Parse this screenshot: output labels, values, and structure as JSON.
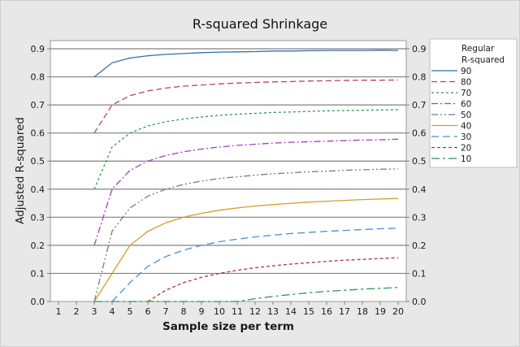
{
  "chart_data": {
    "type": "line",
    "title": "R-squared Shrinkage",
    "xlabel": "Sample size per term",
    "ylabel": "Adjusted R-squared",
    "x": [
      1,
      2,
      3,
      4,
      5,
      6,
      7,
      8,
      9,
      10,
      11,
      12,
      13,
      14,
      15,
      16,
      17,
      18,
      19,
      20
    ],
    "xlim": [
      1,
      20
    ],
    "ylim": [
      0.0,
      0.9
    ],
    "yticks": [
      "0.0",
      "0.1",
      "0.2",
      "0.3",
      "0.4",
      "0.5",
      "0.6",
      "0.7",
      "0.8",
      "0.9"
    ],
    "grid": true,
    "secondary_y_axis": true,
    "legend": {
      "title": "Regular R-squared",
      "position": "right"
    },
    "series": [
      {
        "name": "90",
        "color": "#2e6fb0",
        "dash": "solid",
        "x": [
          3,
          4,
          5,
          6,
          7,
          8,
          9,
          10,
          11,
          12,
          13,
          14,
          15,
          16,
          17,
          18,
          19,
          20
        ],
        "values": [
          0.8,
          0.85,
          0.867,
          0.875,
          0.88,
          0.883,
          0.886,
          0.888,
          0.889,
          0.89,
          0.892,
          0.892,
          0.893,
          0.894,
          0.894,
          0.894,
          0.895,
          0.894
        ]
      },
      {
        "name": "80",
        "color": "#b5474d",
        "dash": "dashed",
        "x": [
          3,
          4,
          5,
          6,
          7,
          8,
          9,
          10,
          11,
          12,
          13,
          14,
          15,
          16,
          17,
          18,
          19,
          20
        ],
        "values": [
          0.6,
          0.7,
          0.733,
          0.75,
          0.76,
          0.767,
          0.771,
          0.775,
          0.778,
          0.78,
          0.782,
          0.783,
          0.785,
          0.786,
          0.787,
          0.788,
          0.788,
          0.789
        ]
      },
      {
        "name": "70",
        "color": "#2e9a4a",
        "dash": "dotted",
        "x": [
          3,
          4,
          5,
          6,
          7,
          8,
          9,
          10,
          11,
          12,
          13,
          14,
          15,
          16,
          17,
          18,
          19,
          20
        ],
        "values": [
          0.4,
          0.55,
          0.6,
          0.625,
          0.64,
          0.65,
          0.657,
          0.663,
          0.667,
          0.67,
          0.673,
          0.675,
          0.677,
          0.679,
          0.68,
          0.681,
          0.682,
          0.683
        ]
      },
      {
        "name": "60",
        "color": "#a63bc4",
        "dash": "dash-dot",
        "x": [
          3,
          4,
          5,
          6,
          7,
          8,
          9,
          10,
          11,
          12,
          13,
          14,
          15,
          16,
          17,
          18,
          19,
          20
        ],
        "values": [
          0.2,
          0.4,
          0.467,
          0.5,
          0.52,
          0.533,
          0.543,
          0.55,
          0.556,
          0.56,
          0.564,
          0.567,
          0.569,
          0.571,
          0.573,
          0.575,
          0.576,
          0.578
        ]
      },
      {
        "name": "50",
        "color": "#7a7a7a",
        "dash": "dash-dot-dot",
        "x": [
          3,
          4,
          5,
          6,
          7,
          8,
          9,
          10,
          11,
          12,
          13,
          14,
          15,
          16,
          17,
          18,
          19,
          20
        ],
        "values": [
          0.0,
          0.25,
          0.333,
          0.375,
          0.4,
          0.417,
          0.429,
          0.438,
          0.444,
          0.45,
          0.455,
          0.458,
          0.462,
          0.464,
          0.467,
          0.469,
          0.471,
          0.472
        ]
      },
      {
        "name": "40",
        "color": "#d99a2b",
        "dash": "solid",
        "x": [
          3,
          4,
          5,
          6,
          7,
          8,
          9,
          10,
          11,
          12,
          13,
          14,
          15,
          16,
          17,
          18,
          19,
          20
        ],
        "values": [
          0.0,
          0.1,
          0.2,
          0.25,
          0.28,
          0.3,
          0.314,
          0.325,
          0.333,
          0.34,
          0.345,
          0.35,
          0.354,
          0.357,
          0.36,
          0.363,
          0.365,
          0.367
        ]
      },
      {
        "name": "30",
        "color": "#4a8fd0",
        "dash": "long-dash",
        "x": [
          4,
          5,
          6,
          7,
          8,
          9,
          10,
          11,
          12,
          13,
          14,
          15,
          16,
          17,
          18,
          19,
          20
        ],
        "values": [
          0.0,
          0.067,
          0.125,
          0.16,
          0.183,
          0.2,
          0.213,
          0.222,
          0.23,
          0.236,
          0.242,
          0.246,
          0.25,
          0.253,
          0.256,
          0.259,
          0.261
        ]
      },
      {
        "name": "20",
        "color": "#a8353d",
        "dash": "short-dash",
        "x": [
          6,
          7,
          8,
          9,
          10,
          11,
          12,
          13,
          14,
          15,
          16,
          17,
          18,
          19,
          20
        ],
        "values": [
          0.0,
          0.04,
          0.067,
          0.086,
          0.1,
          0.111,
          0.12,
          0.127,
          0.133,
          0.138,
          0.143,
          0.147,
          0.15,
          0.153,
          0.156
        ]
      },
      {
        "name": "10",
        "color": "#2e9a4a",
        "dash": "long-dash-dot",
        "x": [
          3,
          11,
          12,
          13,
          14,
          15,
          16,
          17,
          18,
          19,
          20
        ],
        "values": [
          0.0,
          0.0,
          0.01,
          0.018,
          0.025,
          0.031,
          0.036,
          0.04,
          0.044,
          0.047,
          0.05
        ]
      }
    ]
  },
  "labels": {
    "title": "R-squared Shrinkage",
    "xlabel": "Sample size per term",
    "ylabel": "Adjusted R-squared",
    "legend_title_1": "Regular",
    "legend_title_2": "R-squared"
  }
}
